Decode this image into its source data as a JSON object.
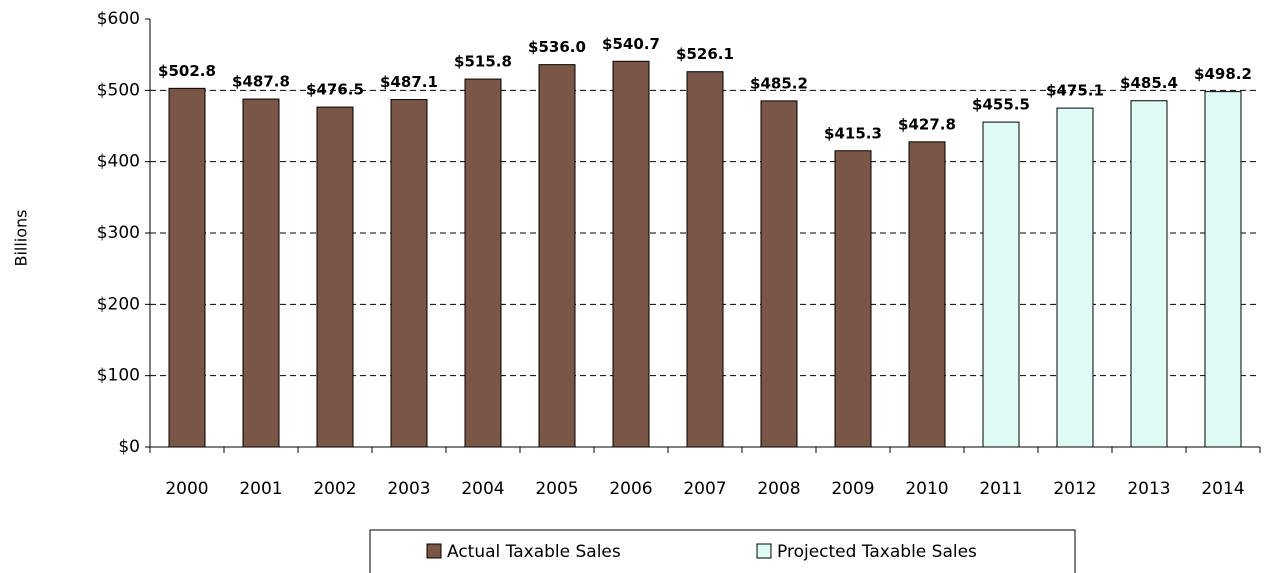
{
  "chart_data": {
    "type": "bar",
    "y_label": "Billions",
    "categories": [
      "2000",
      "2001",
      "2002",
      "2003",
      "2004",
      "2005",
      "2006",
      "2007",
      "2008",
      "2009",
      "2010",
      "2011",
      "2012",
      "2013",
      "2014"
    ],
    "series": [
      {
        "name": "Actual Taxable Sales",
        "color": "#7a5646",
        "values": [
          502.8,
          487.8,
          476.5,
          487.1,
          515.8,
          536.0,
          540.7,
          526.1,
          485.2,
          415.3,
          427.8,
          null,
          null,
          null,
          null
        ],
        "value_labels": [
          "$502.8",
          "$487.8",
          "$476.5",
          "$487.1",
          "$515.8",
          "$536.0",
          "$540.7",
          "$526.1",
          "$485.2",
          "$415.3",
          "$427.8",
          null,
          null,
          null,
          null
        ]
      },
      {
        "name": "Projected Taxable Sales",
        "color": "#dffbf5",
        "values": [
          null,
          null,
          null,
          null,
          null,
          null,
          null,
          null,
          null,
          null,
          null,
          455.5,
          475.1,
          485.4,
          498.2
        ],
        "value_labels": [
          null,
          null,
          null,
          null,
          null,
          null,
          null,
          null,
          null,
          null,
          null,
          "$455.5",
          "$475.1",
          "$485.4",
          "$498.2"
        ]
      }
    ],
    "ylim": [
      0,
      600
    ],
    "yticks": [
      {
        "value": 0,
        "label": "$0"
      },
      {
        "value": 100,
        "label": "$100"
      },
      {
        "value": 200,
        "label": "$200"
      },
      {
        "value": 300,
        "label": "$300"
      },
      {
        "value": 400,
        "label": "$400"
      },
      {
        "value": 500,
        "label": "$500"
      },
      {
        "value": 600,
        "label": "$600"
      }
    ],
    "grid": true,
    "legend": "bottom"
  }
}
